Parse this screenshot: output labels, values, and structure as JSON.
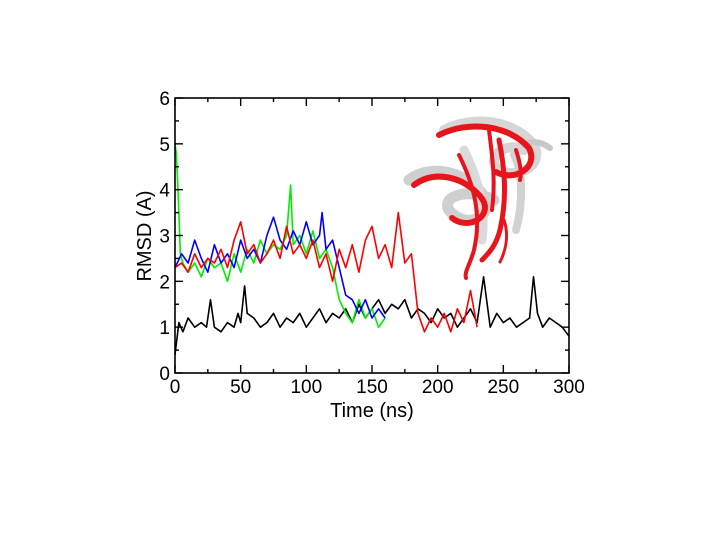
{
  "chart_data": {
    "type": "line",
    "title": "",
    "xlabel": "Time   (ns)",
    "ylabel": "RMSD  (A)",
    "xlim": [
      0,
      300
    ],
    "ylim": [
      0,
      6
    ],
    "xticks": [
      "0",
      "50",
      "100",
      "150",
      "200",
      "250",
      "300"
    ],
    "yticks": [
      "0",
      "1",
      "2",
      "3",
      "4",
      "5",
      "6"
    ],
    "grid": false,
    "legend": "none",
    "series": [
      {
        "color": "#000000",
        "x": [
          0,
          3,
          6,
          10,
          15,
          20,
          24,
          27,
          30,
          35,
          40,
          45,
          48,
          50,
          53,
          55,
          60,
          65,
          70,
          75,
          80,
          85,
          90,
          95,
          100,
          105,
          110,
          115,
          120,
          125,
          130,
          135,
          140,
          145,
          150,
          155,
          160,
          165,
          170,
          175,
          180,
          185,
          190,
          195,
          200,
          205,
          210,
          215,
          220,
          225,
          230,
          235,
          240,
          245,
          250,
          255,
          260,
          265,
          270,
          273,
          276,
          280,
          285,
          290,
          295,
          300
        ],
        "y": [
          0.4,
          1.1,
          0.9,
          1.2,
          1.0,
          1.1,
          1.0,
          1.6,
          1.0,
          0.9,
          1.1,
          1.0,
          1.3,
          1.1,
          1.9,
          1.3,
          1.2,
          1.0,
          1.1,
          1.3,
          1.0,
          1.2,
          1.1,
          1.3,
          1.0,
          1.2,
          1.4,
          1.1,
          1.3,
          1.2,
          1.4,
          1.1,
          1.5,
          1.2,
          1.4,
          1.6,
          1.3,
          1.5,
          1.4,
          1.6,
          1.2,
          1.4,
          1.3,
          1.1,
          1.4,
          1.2,
          1.3,
          1.0,
          1.2,
          1.4,
          1.1,
          2.1,
          1.0,
          1.3,
          1.1,
          1.2,
          1.0,
          1.1,
          1.2,
          2.1,
          1.3,
          1.0,
          1.2,
          1.1,
          1.0,
          0.8
        ]
      },
      {
        "color": "#00ee00",
        "x": [
          0,
          1,
          2,
          3,
          4,
          6,
          8,
          10,
          15,
          20,
          25,
          30,
          35,
          40,
          45,
          50,
          55,
          60,
          65,
          70,
          75,
          80,
          85,
          88,
          90,
          95,
          100,
          105,
          110,
          115,
          120,
          125,
          130,
          135,
          140,
          145,
          150,
          155,
          160
        ],
        "y": [
          5.0,
          4.8,
          4.2,
          3.5,
          2.6,
          2.4,
          2.3,
          2.2,
          2.4,
          2.1,
          2.5,
          2.3,
          2.4,
          2.0,
          2.6,
          2.2,
          2.7,
          2.4,
          2.9,
          2.6,
          2.8,
          2.7,
          3.0,
          4.1,
          2.8,
          3.0,
          2.6,
          3.1,
          2.5,
          2.7,
          2.3,
          1.6,
          1.3,
          1.1,
          1.6,
          1.2,
          1.4,
          1.0,
          1.2
        ]
      },
      {
        "color": "#0000ff",
        "x": [
          0,
          5,
          10,
          15,
          20,
          25,
          30,
          35,
          40,
          45,
          50,
          55,
          60,
          65,
          70,
          75,
          80,
          85,
          90,
          95,
          100,
          105,
          110,
          112,
          115,
          120,
          125,
          130,
          135,
          140,
          145,
          150,
          155,
          160
        ],
        "y": [
          2.3,
          2.6,
          2.4,
          2.9,
          2.5,
          2.2,
          2.8,
          2.4,
          2.6,
          2.3,
          2.9,
          2.5,
          2.7,
          2.4,
          3.0,
          3.4,
          2.9,
          2.7,
          3.1,
          2.8,
          3.3,
          2.8,
          3.0,
          3.5,
          2.7,
          2.9,
          2.3,
          1.7,
          1.6,
          1.3,
          1.6,
          1.2,
          1.4,
          1.2
        ]
      },
      {
        "color": "#ff0000",
        "x": [
          0,
          5,
          10,
          15,
          20,
          25,
          30,
          35,
          40,
          45,
          50,
          55,
          60,
          65,
          70,
          75,
          80,
          85,
          90,
          95,
          100,
          105,
          110,
          115,
          120,
          125,
          130,
          135,
          140,
          145,
          150,
          155,
          160,
          165,
          170,
          175,
          180,
          182,
          185,
          190,
          195,
          200,
          205,
          210,
          215,
          220,
          225,
          230
        ],
        "y": [
          2.3,
          2.4,
          2.2,
          2.6,
          2.3,
          2.5,
          2.4,
          2.7,
          2.3,
          2.9,
          3.3,
          2.6,
          2.8,
          2.4,
          2.6,
          2.9,
          2.5,
          3.2,
          2.6,
          2.8,
          2.5,
          2.9,
          2.3,
          2.6,
          2.0,
          2.7,
          2.3,
          2.8,
          2.2,
          2.9,
          3.2,
          2.5,
          2.8,
          2.3,
          3.5,
          2.4,
          2.6,
          2.1,
          1.3,
          0.9,
          1.2,
          1.0,
          1.3,
          0.9,
          1.4,
          1.1,
          1.8,
          1.0
        ]
      }
    ]
  },
  "image": {
    "subject": "protein-structure-overlay",
    "colors": [
      "#e8141c",
      "#d8d8d8"
    ]
  }
}
